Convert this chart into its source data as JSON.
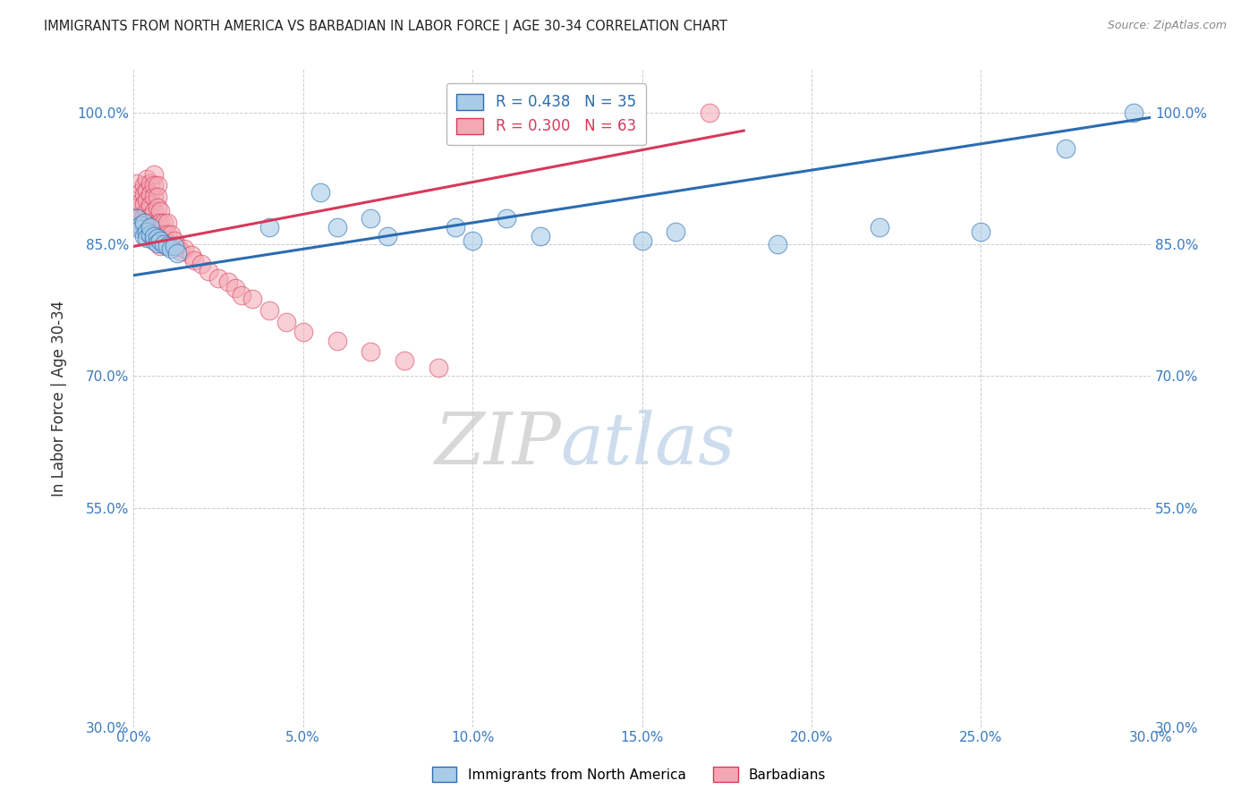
{
  "title": "IMMIGRANTS FROM NORTH AMERICA VS BARBADIAN IN LABOR FORCE | AGE 30-34 CORRELATION CHART",
  "source": "Source: ZipAtlas.com",
  "ylabel": "In Labor Force | Age 30-34",
  "xlim": [
    0.0,
    0.3
  ],
  "ylim": [
    0.3,
    1.05
  ],
  "xtick_labels": [
    "0.0%",
    "5.0%",
    "10.0%",
    "15.0%",
    "20.0%",
    "25.0%",
    "30.0%"
  ],
  "xtick_vals": [
    0.0,
    0.05,
    0.1,
    0.15,
    0.2,
    0.25,
    0.3
  ],
  "ytick_labels": [
    "30.0%",
    "55.0%",
    "70.0%",
    "85.0%",
    "100.0%"
  ],
  "ytick_vals": [
    0.3,
    0.55,
    0.7,
    0.85,
    1.0
  ],
  "blue_R": 0.438,
  "blue_N": 35,
  "pink_R": 0.3,
  "pink_N": 63,
  "blue_color": "#a8cce8",
  "pink_color": "#f4a8b4",
  "blue_line_color": "#2b6cb0",
  "pink_line_color": "#d63a5a",
  "legend_label_blue": "Immigrants from North America",
  "legend_label_pink": "Barbadians",
  "watermark_zip": "ZIP",
  "watermark_atlas": "atlas",
  "blue_scatter_x": [
    0.001,
    0.002,
    0.002,
    0.003,
    0.003,
    0.004,
    0.004,
    0.005,
    0.005,
    0.006,
    0.006,
    0.007,
    0.007,
    0.008,
    0.009,
    0.01,
    0.011,
    0.012,
    0.013,
    0.04,
    0.055,
    0.06,
    0.07,
    0.075,
    0.095,
    0.1,
    0.11,
    0.12,
    0.15,
    0.16,
    0.19,
    0.22,
    0.25,
    0.275,
    0.295
  ],
  "blue_scatter_y": [
    0.88,
    0.872,
    0.868,
    0.875,
    0.86,
    0.865,
    0.858,
    0.862,
    0.87,
    0.855,
    0.86,
    0.858,
    0.852,
    0.855,
    0.85,
    0.848,
    0.845,
    0.848,
    0.84,
    0.87,
    0.91,
    0.87,
    0.88,
    0.86,
    0.87,
    0.855,
    0.88,
    0.86,
    0.855,
    0.865,
    0.85,
    0.87,
    0.865,
    0.96,
    1.0
  ],
  "pink_scatter_x": [
    0.001,
    0.001,
    0.001,
    0.002,
    0.002,
    0.002,
    0.002,
    0.003,
    0.003,
    0.003,
    0.003,
    0.003,
    0.004,
    0.004,
    0.004,
    0.004,
    0.005,
    0.005,
    0.005,
    0.005,
    0.005,
    0.005,
    0.006,
    0.006,
    0.006,
    0.006,
    0.006,
    0.007,
    0.007,
    0.007,
    0.007,
    0.008,
    0.008,
    0.008,
    0.008,
    0.009,
    0.009,
    0.01,
    0.01,
    0.01,
    0.011,
    0.011,
    0.012,
    0.013,
    0.014,
    0.015,
    0.017,
    0.018,
    0.02,
    0.022,
    0.025,
    0.028,
    0.03,
    0.032,
    0.035,
    0.04,
    0.045,
    0.05,
    0.06,
    0.07,
    0.08,
    0.09,
    0.17
  ],
  "pink_scatter_y": [
    0.878,
    0.892,
    0.92,
    0.91,
    0.898,
    0.882,
    0.872,
    0.918,
    0.908,
    0.896,
    0.882,
    0.872,
    0.925,
    0.912,
    0.9,
    0.888,
    0.92,
    0.908,
    0.895,
    0.882,
    0.875,
    0.862,
    0.93,
    0.918,
    0.905,
    0.888,
    0.872,
    0.918,
    0.905,
    0.892,
    0.875,
    0.888,
    0.875,
    0.862,
    0.848,
    0.875,
    0.862,
    0.875,
    0.862,
    0.852,
    0.862,
    0.848,
    0.855,
    0.848,
    0.842,
    0.845,
    0.838,
    0.832,
    0.828,
    0.82,
    0.812,
    0.808,
    0.8,
    0.792,
    0.788,
    0.775,
    0.762,
    0.75,
    0.74,
    0.728,
    0.718,
    0.71,
    1.0
  ],
  "blue_trendline_x": [
    0.0,
    0.3
  ],
  "blue_trendline_y": [
    0.815,
    0.995
  ],
  "pink_trendline_x": [
    0.0,
    0.18
  ],
  "pink_trendline_y": [
    0.848,
    0.98
  ]
}
